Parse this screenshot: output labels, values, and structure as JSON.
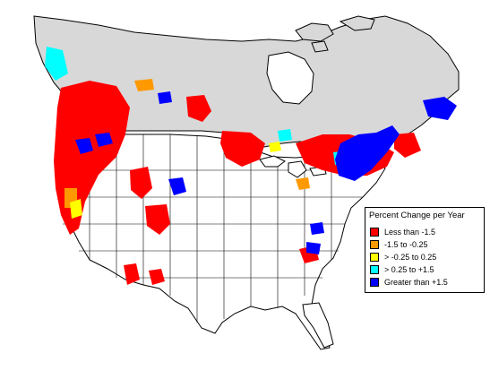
{
  "legend": {
    "title": "Percent Change per Year",
    "items": [
      {
        "label": "Less than -1.5",
        "color": "#ff0000"
      },
      {
        "label": "-1.5 to -0.25",
        "color": "#ff9900"
      },
      {
        "label": "> -0.25 to 0.25",
        "color": "#ffff00"
      },
      {
        "label": "> 0.25 to +1.5",
        "color": "#00ffff"
      },
      {
        "label": "Greater than +1.5",
        "color": "#0000ff"
      }
    ]
  },
  "map_colors": {
    "no_data": "#d8d8d8",
    "land": "#ffffff",
    "boundary": "#000000"
  }
}
